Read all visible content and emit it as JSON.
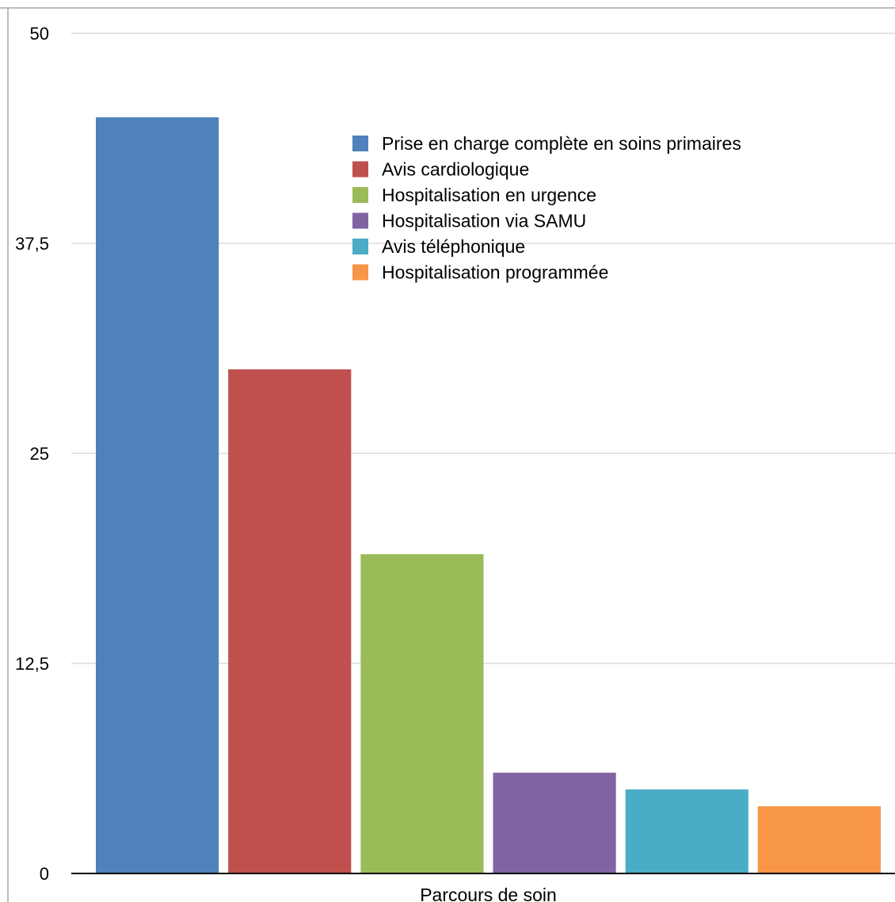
{
  "chart_data": {
    "type": "bar",
    "title": "",
    "xlabel": "Parcours de soin",
    "ylabel": "",
    "ylim": [
      0,
      50
    ],
    "yticks": [
      0,
      12.5,
      25,
      37.5,
      50
    ],
    "ytick_labels": [
      "0",
      "12,5",
      "25",
      "37,5",
      "50"
    ],
    "grid": true,
    "legend_position": "top-right",
    "categories": [
      "Parcours de soin"
    ],
    "series": [
      {
        "name": "Prise en charge complète en soins primaires",
        "values": [
          45
        ],
        "color": "#4F81BD"
      },
      {
        "name": "Avis cardiologique",
        "values": [
          30
        ],
        "color": "#C0504D"
      },
      {
        "name": "Hospitalisation en urgence",
        "values": [
          19
        ],
        "color": "#9BBB59"
      },
      {
        "name": "Hospitalisation via SAMU",
        "values": [
          6
        ],
        "color": "#8064A2"
      },
      {
        "name": "Avis téléphonique",
        "values": [
          5
        ],
        "color": "#4BACC6"
      },
      {
        "name": "Hospitalisation programmée",
        "values": [
          4
        ],
        "color": "#F79646"
      }
    ]
  }
}
